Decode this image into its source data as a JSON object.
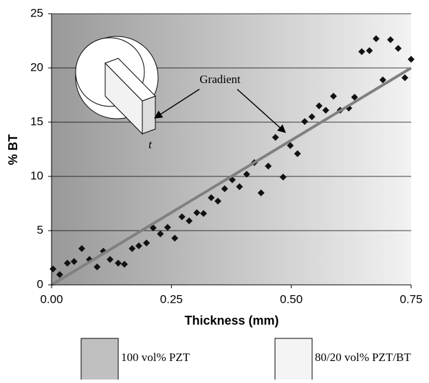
{
  "chart_data": {
    "type": "scatter",
    "x_label": "Thickness (mm)",
    "y_label": "% BT",
    "xlim": [
      0,
      0.75
    ],
    "ylim": [
      0,
      25
    ],
    "xticks": [
      {
        "value": 0,
        "label": "0.00"
      },
      0.25,
      {
        "value": 0.5,
        "label": "0.50"
      },
      0.75
    ],
    "yticks": [
      0,
      5,
      10,
      15,
      20,
      25
    ],
    "grid": true,
    "series": [
      {
        "mode": "markers",
        "color": "#111111",
        "x": [
          0.003,
          0.017,
          0.033,
          0.047,
          0.063,
          0.079,
          0.095,
          0.108,
          0.122,
          0.139,
          0.152,
          0.168,
          0.182,
          0.198,
          0.212,
          0.227,
          0.242,
          0.257,
          0.272,
          0.287,
          0.303,
          0.317,
          0.333,
          0.347,
          0.361,
          0.377,
          0.392,
          0.407,
          0.423,
          0.437,
          0.452,
          0.467,
          0.483,
          0.498,
          0.513,
          0.528,
          0.543,
          0.558,
          0.572,
          0.588,
          0.602,
          0.62,
          0.632,
          0.647,
          0.663,
          0.677,
          0.691,
          0.707,
          0.723,
          0.737,
          0.75
        ],
        "values": [
          1.46,
          0.95,
          2.0,
          2.15,
          3.35,
          2.34,
          1.65,
          3.1,
          2.34,
          2.0,
          1.9,
          3.35,
          3.6,
          3.86,
          5.25,
          4.7,
          5.3,
          4.3,
          6.27,
          5.9,
          6.65,
          6.58,
          8.04,
          7.72,
          8.86,
          9.68,
          9.05,
          10.2,
          11.27,
          8.48,
          10.95,
          13.6,
          9.94,
          12.85,
          12.1,
          15.06,
          15.5,
          16.5,
          16.1,
          17.4,
          16.1,
          16.3,
          17.3,
          21.5,
          21.6,
          22.7,
          18.9,
          22.6,
          21.8,
          19.1,
          20.8
        ]
      },
      {
        "mode": "line",
        "color": "#808080",
        "x": [
          0,
          0.75
        ],
        "values": [
          0,
          20
        ]
      }
    ],
    "background_gradient": [
      "#999999",
      "#f2f2f2"
    ],
    "annotations": [
      "Gradient",
      "t"
    ],
    "legend": [
      {
        "label": "100 vol% PZT",
        "color": "#c0c0c0"
      },
      {
        "label": "80/20 vol% PZT/BT",
        "color": "#f4f4f4"
      }
    ]
  }
}
